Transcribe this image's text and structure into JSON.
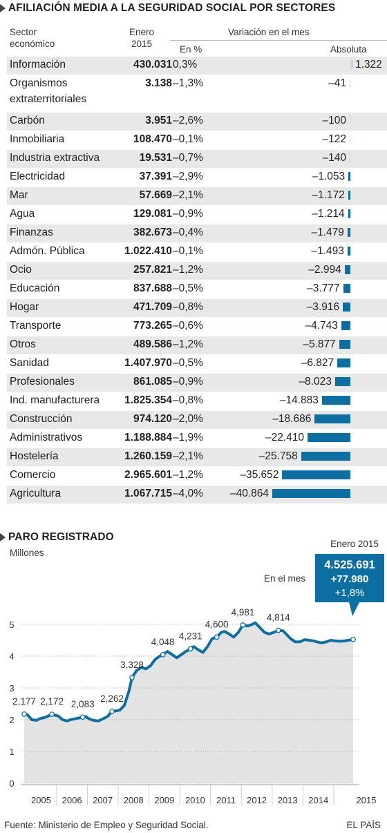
{
  "table": {
    "title": "AFILIACIÓN MEDIA A LA SEGURIDAD SOCIAL POR SECTORES",
    "headers": {
      "sector_line1": "Sector",
      "sector_line2": "económico",
      "enero_line1": "Enero",
      "enero_line2": "2015",
      "variation": "Variación en el mes",
      "pct": "En %",
      "abs": "Absoluta"
    },
    "bar_color": "#0d6fa1",
    "bar_color_positive": "#c5d9e8",
    "rows": [
      {
        "sector": "Información",
        "enero": "430.031",
        "pct": "0,3%",
        "abs_label": "1.322",
        "abs": 1322
      },
      {
        "sector": "Organismos extraterritoriales",
        "enero": "3.138",
        "pct": "–1,3%",
        "abs_label": "–41",
        "abs": -41
      },
      {
        "sector": "Carbón",
        "enero": "3.951",
        "pct": "–2,6%",
        "abs_label": "–100",
        "abs": -100
      },
      {
        "sector": "Inmobiliaria",
        "enero": "108.470",
        "pct": "–0,1%",
        "abs_label": "–122",
        "abs": -122
      },
      {
        "sector": "Industria extractiva",
        "enero": "19.531",
        "pct": "–0,7%",
        "abs_label": "–140",
        "abs": -140
      },
      {
        "sector": "Electricidad",
        "enero": "37.391",
        "pct": "–2,9%",
        "abs_label": "–1.053",
        "abs": -1053
      },
      {
        "sector": "Mar",
        "enero": "57.669",
        "pct": "–2,1%",
        "abs_label": "–1.172",
        "abs": -1172
      },
      {
        "sector": "Agua",
        "enero": "129.081",
        "pct": "–0,9%",
        "abs_label": "–1.214",
        "abs": -1214
      },
      {
        "sector": "Finanzas",
        "enero": "382.673",
        "pct": "–0,4%",
        "abs_label": "–1.479",
        "abs": -1479
      },
      {
        "sector": "Admón. Pública",
        "enero": "1.022.410",
        "pct": "–0,1%",
        "abs_label": "–1.493",
        "abs": -1493
      },
      {
        "sector": "Ocio",
        "enero": "257.821",
        "pct": "–1,2%",
        "abs_label": "–2.994",
        "abs": -2994
      },
      {
        "sector": "Educación",
        "enero": "837.688",
        "pct": "–0,5%",
        "abs_label": "–3.777",
        "abs": -3777
      },
      {
        "sector": "Hogar",
        "enero": "471.709",
        "pct": "–0,8%",
        "abs_label": "–3.916",
        "abs": -3916
      },
      {
        "sector": "Transporte",
        "enero": "773.265",
        "pct": "–0,6%",
        "abs_label": "–4.743",
        "abs": -4743
      },
      {
        "sector": "Otros",
        "enero": "489.586",
        "pct": "–1,2%",
        "abs_label": "–5.877",
        "abs": -5877
      },
      {
        "sector": "Sanidad",
        "enero": "1.407.970",
        "pct": "–0,5%",
        "abs_label": "–6.827",
        "abs": -6827
      },
      {
        "sector": "Profesionales",
        "enero": "861.085",
        "pct": "–0,9%",
        "abs_label": "–8.023",
        "abs": -8023
      },
      {
        "sector": "Ind. manufacturera",
        "enero": "1.825.354",
        "pct": "–0,8%",
        "abs_label": "–14.883",
        "abs": -14883
      },
      {
        "sector": "Construcción",
        "enero": "974.120",
        "pct": "–2,0%",
        "abs_label": "–18.686",
        "abs": -18686
      },
      {
        "sector": "Administrativos",
        "enero": "1.188.884",
        "pct": "–1,9%",
        "abs_label": "–22.410",
        "abs": -22410
      },
      {
        "sector": "Hostelería",
        "enero": "1.260.159",
        "pct": "–2,1%",
        "abs_label": "–25.758",
        "abs": -25758
      },
      {
        "sector": "Comercio",
        "enero": "2.965.601",
        "pct": "–1,2%",
        "abs_label": "–35.652",
        "abs": -35652
      },
      {
        "sector": "Agricultura",
        "enero": "1.067.715",
        "pct": "–4,0%",
        "abs_label": "–40.864",
        "abs": -40864
      }
    ]
  },
  "chart_data": {
    "type": "area",
    "title": "PARO REGISTRADO",
    "ylabel": "Millones",
    "ylim": [
      0,
      5
    ],
    "yticks": [
      "0",
      "1",
      "2",
      "3",
      "4",
      "5"
    ],
    "xticks": [
      "2005",
      "2006",
      "2007",
      "2008",
      "2009",
      "2010",
      "2011",
      "2012",
      "2013",
      "2014",
      "2015"
    ],
    "x_range": [
      2004.5,
      2015.2
    ],
    "fill_color": "#e3e3e3",
    "line_color": "#0d6fa1",
    "series": [
      {
        "x": [
          2004.5,
          2004.6,
          2004.75,
          2004.9,
          2005.0,
          2005.2,
          2005.4,
          2005.5,
          2005.6,
          2005.75,
          2005.9,
          2006.0,
          2006.2,
          2006.4,
          2006.5,
          2006.6,
          2006.75,
          2006.9,
          2007.0,
          2007.2,
          2007.35,
          2007.5,
          2007.6,
          2007.75,
          2007.9,
          2008.0,
          2008.15,
          2008.3,
          2008.45,
          2008.6,
          2008.75,
          2008.9,
          2009.0,
          2009.15,
          2009.3,
          2009.45,
          2009.6,
          2009.75,
          2009.9,
          2010.0,
          2010.15,
          2010.3,
          2010.45,
          2010.6,
          2010.75,
          2010.9,
          2011.0,
          2011.15,
          2011.3,
          2011.45,
          2011.6,
          2011.75,
          2011.9,
          2012.0,
          2012.15,
          2012.3,
          2012.45,
          2012.6,
          2012.75,
          2012.9,
          2013.0,
          2013.15,
          2013.3,
          2013.45,
          2013.6,
          2013.75,
          2013.9,
          2014.0,
          2014.15,
          2014.3,
          2014.45,
          2014.6,
          2014.75,
          2014.9,
          2015.0
        ],
        "y": [
          2.177,
          2.16,
          2.0,
          1.98,
          2.03,
          2.08,
          2.172,
          2.14,
          2.12,
          2.0,
          1.96,
          2.0,
          2.04,
          2.083,
          2.1,
          2.03,
          1.98,
          1.96,
          2.0,
          2.1,
          2.262,
          2.28,
          2.3,
          2.45,
          2.9,
          3.328,
          3.55,
          3.65,
          3.6,
          3.7,
          3.9,
          4.0,
          4.048,
          4.15,
          4.05,
          3.95,
          4.05,
          4.15,
          4.231,
          4.3,
          4.2,
          4.12,
          4.3,
          4.55,
          4.6,
          4.75,
          4.78,
          4.7,
          4.6,
          4.75,
          4.981,
          4.95,
          5.0,
          5.05,
          4.9,
          4.75,
          4.7,
          4.75,
          4.814,
          4.8,
          4.7,
          4.55,
          4.45,
          4.45,
          4.52,
          4.5,
          4.48,
          4.45,
          4.42,
          4.45,
          4.5,
          4.48,
          4.47,
          4.48,
          4.525691
        ]
      }
    ],
    "markers": [
      {
        "x": 2004.5,
        "y": 2.177,
        "label": "2,177"
      },
      {
        "x": 2005.4,
        "y": 2.172,
        "label": "2,172"
      },
      {
        "x": 2006.4,
        "y": 2.083,
        "label": "2,083"
      },
      {
        "x": 2007.35,
        "y": 2.262,
        "label": "2,262"
      },
      {
        "x": 2008.0,
        "y": 3.328,
        "label": "3,328"
      },
      {
        "x": 2009.0,
        "y": 4.048,
        "label": "4,048"
      },
      {
        "x": 2009.9,
        "y": 4.231,
        "label": "4,231"
      },
      {
        "x": 2010.75,
        "y": 4.6,
        "label": "4,600"
      },
      {
        "x": 2011.6,
        "y": 4.981,
        "label": "4,981"
      },
      {
        "x": 2012.75,
        "y": 4.814,
        "label": "4,814"
      },
      {
        "x": 2015.0,
        "y": 4.525691,
        "label": ""
      }
    ],
    "callout": {
      "header": "Enero 2015",
      "side_label": "En el mes",
      "value": "4.525.691",
      "change_abs": "+77.980",
      "change_pct": "+1,8%",
      "bg_color": "#0d6fa1"
    }
  },
  "footer": {
    "source": "Fuente: Ministerio de Empleo y Seguridad Social.",
    "brand": "EL PAÍS"
  }
}
